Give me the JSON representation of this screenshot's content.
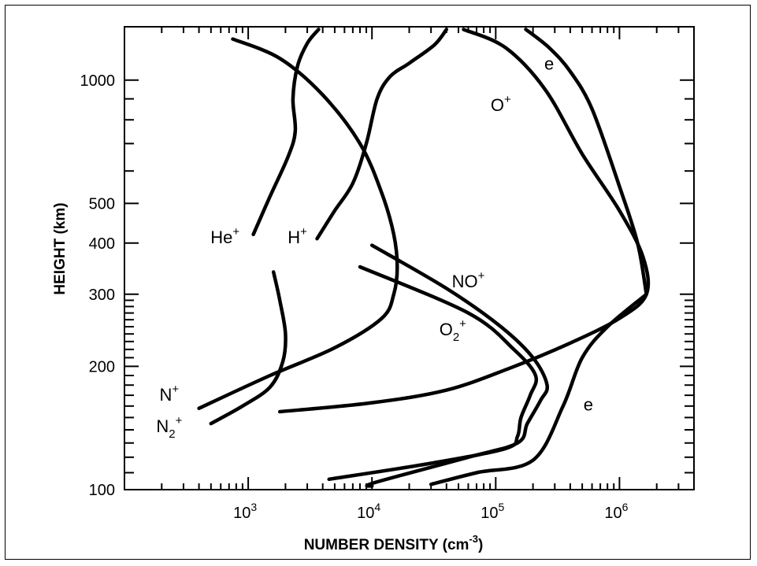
{
  "chart_data": {
    "type": "line",
    "title": "",
    "xlabel": "NUMBER DENSITY (cm",
    "xlabel_sup": "-3",
    "xlabel_close": ")",
    "ylabel": "HEIGHT (km)",
    "xscale": "log",
    "yscale": "log",
    "xlim": [
      100,
      4000000
    ],
    "ylim": [
      100,
      1350
    ],
    "grid": false,
    "legend": "none",
    "x_ticks": [
      {
        "value": 1000,
        "base": "10",
        "exp": "3"
      },
      {
        "value": 10000,
        "base": "10",
        "exp": "4"
      },
      {
        "value": 100000,
        "base": "10",
        "exp": "5"
      },
      {
        "value": 1000000,
        "base": "10",
        "exp": "6"
      }
    ],
    "y_tick_labels": [
      {
        "value": 100,
        "label": "100"
      },
      {
        "value": 200,
        "label": "200"
      },
      {
        "value": 300,
        "label": "300"
      },
      {
        "value": 400,
        "label": "400"
      },
      {
        "value": 500,
        "label": "500"
      },
      {
        "value": 1000,
        "label": "1000"
      }
    ],
    "y_minor_ticks": [
      110,
      120,
      130,
      140,
      150,
      160,
      170,
      180,
      190,
      210,
      220,
      230,
      240,
      250,
      260,
      270,
      280,
      290,
      600,
      700,
      800,
      900
    ],
    "series": [
      {
        "id": "he-plus",
        "name": "He+",
        "label": {
          "text": "He",
          "sup": "+",
          "sub": "",
          "at": [
            650,
            400
          ]
        },
        "points": [
          [
            1100,
            420
          ],
          [
            1500,
            520
          ],
          [
            2100,
            650
          ],
          [
            2400,
            750
          ],
          [
            2300,
            900
          ],
          [
            2500,
            1080
          ],
          [
            3000,
            1230
          ],
          [
            3700,
            1330
          ]
        ]
      },
      {
        "id": "h-plus",
        "name": "H+",
        "label": {
          "text": "H",
          "sup": "+",
          "sub": "",
          "at": [
            2500,
            400
          ]
        },
        "points": [
          [
            3600,
            410
          ],
          [
            5000,
            480
          ],
          [
            7000,
            560
          ],
          [
            9000,
            700
          ],
          [
            11000,
            900
          ],
          [
            14000,
            1020
          ],
          [
            20000,
            1100
          ],
          [
            32000,
            1220
          ],
          [
            40000,
            1330
          ]
        ]
      },
      {
        "id": "o-plus-upper",
        "name": "O+",
        "label": {
          "text": "O",
          "sup": "+",
          "sub": "",
          "at": [
            110000,
            840
          ]
        },
        "points": [
          [
            1800,
            155
          ],
          [
            10000,
            163
          ],
          [
            40000,
            175
          ],
          [
            130000,
            198
          ],
          [
            400000,
            228
          ],
          [
            1000000,
            262
          ],
          [
            1650000,
            300
          ],
          [
            1550000,
            370
          ],
          [
            1000000,
            480
          ],
          [
            500000,
            660
          ],
          [
            250000,
            950
          ],
          [
            120000,
            1200
          ],
          [
            55000,
            1330
          ]
        ]
      },
      {
        "id": "e-upper",
        "name": "e",
        "label": {
          "text": "e",
          "sup": "",
          "sub": "",
          "at": [
            270000,
            1060
          ]
        },
        "points": [
          [
            1650000,
            300
          ],
          [
            1400000,
            400
          ],
          [
            1000000,
            550
          ],
          [
            600000,
            850
          ],
          [
            400000,
            1050
          ],
          [
            270000,
            1200
          ],
          [
            175000,
            1330
          ]
        ]
      },
      {
        "id": "n-plus",
        "name": "N+",
        "label": {
          "text": "N",
          "sup": "+",
          "sub": "",
          "at": [
            230,
            165
          ]
        },
        "points": [
          [
            400,
            158
          ],
          [
            1500,
            190
          ],
          [
            5000,
            222
          ],
          [
            12000,
            262
          ],
          [
            15000,
            300
          ],
          [
            16000,
            350
          ],
          [
            15000,
            420
          ],
          [
            12000,
            530
          ],
          [
            8000,
            700
          ],
          [
            4000,
            920
          ],
          [
            1800,
            1130
          ],
          [
            750,
            1260
          ]
        ]
      },
      {
        "id": "n2-plus",
        "name": "N2+",
        "label": {
          "text": "N",
          "sup": "+",
          "sub": "2",
          "at": [
            230,
            138
          ]
        },
        "points": [
          [
            500,
            145
          ],
          [
            900,
            160
          ],
          [
            1500,
            178
          ],
          [
            1900,
            205
          ],
          [
            2000,
            240
          ],
          [
            1800,
            290
          ],
          [
            1600,
            340
          ]
        ]
      },
      {
        "id": "no-plus",
        "name": "NO+",
        "label": {
          "text": "NO",
          "sup": "+",
          "sub": "",
          "at": [
            60000,
            312
          ]
        },
        "points": [
          [
            10000,
            102
          ],
          [
            10500,
            104
          ],
          [
            60000,
            120
          ],
          [
            150000,
            130
          ],
          [
            180000,
            145
          ],
          [
            230000,
            165
          ],
          [
            260000,
            180
          ],
          [
            200000,
            210
          ],
          [
            110000,
            250
          ],
          [
            40000,
            310
          ],
          [
            10000,
            395
          ]
        ]
      },
      {
        "id": "o2-plus",
        "name": "O2+",
        "label": {
          "text": "O",
          "sup": "+",
          "sub": "2",
          "at": [
            45000,
            238
          ]
        },
        "points": [
          [
            4500,
            106
          ],
          [
            30000,
            116
          ],
          [
            120000,
            126
          ],
          [
            150000,
            135
          ],
          [
            160000,
            150
          ],
          [
            190000,
            170
          ],
          [
            210000,
            190
          ],
          [
            140000,
            220
          ],
          [
            60000,
            270
          ],
          [
            8000,
            350
          ]
        ]
      },
      {
        "id": "e-lower",
        "name": "e",
        "label": {
          "text": "e",
          "sup": "",
          "sub": "",
          "at": [
            560000,
            156
          ]
        },
        "points": [
          [
            30000,
            103
          ],
          [
            70000,
            110
          ],
          [
            200000,
            118
          ],
          [
            350000,
            160
          ],
          [
            500000,
            210
          ],
          [
            800000,
            250
          ],
          [
            1650000,
            300
          ]
        ]
      }
    ]
  }
}
